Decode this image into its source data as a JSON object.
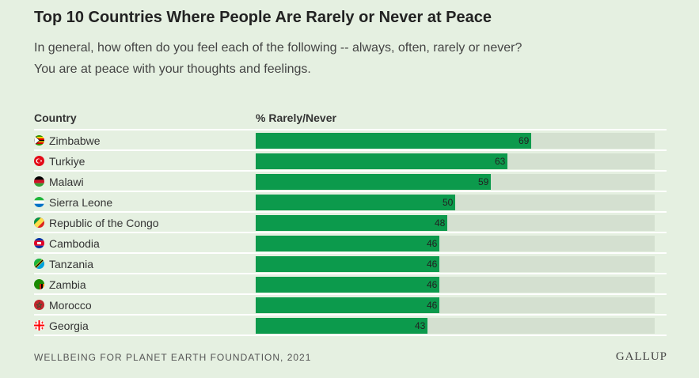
{
  "header": {
    "title": "Top 10 Countries Where People Are Rarely or Never at Peace",
    "subtitle": "In general, how often do you feel each of the following -- always, often, rarely or never?",
    "subtitle2": "You are at peace with your thoughts and feelings."
  },
  "table": {
    "country_header": "Country",
    "value_header": "% Rarely/Never"
  },
  "footer": {
    "source": "WELLBEING FOR PLANET EARTH FOUNDATION, 2021",
    "logo": "GALLUP"
  },
  "colors": {
    "bar": "#0c9a4c",
    "track": "#d4e0d0",
    "background": "#e5f0e1"
  },
  "chart_data": {
    "type": "bar",
    "orientation": "horizontal",
    "title": "Top 10 Countries Where People Are Rarely or Never at Peace",
    "xlabel": "% Rarely/Never",
    "xlim": [
      0,
      100
    ],
    "categories": [
      "Zimbabwe",
      "Turkiye",
      "Malawi",
      "Sierra Leone",
      "Republic of the Congo",
      "Cambodia",
      "Tanzania",
      "Zambia",
      "Morocco",
      "Georgia"
    ],
    "values": [
      69,
      63,
      59,
      50,
      48,
      46,
      46,
      46,
      46,
      43
    ],
    "flag_icons": [
      "zimbabwe-flag-icon",
      "turkiye-flag-icon",
      "malawi-flag-icon",
      "sierra-leone-flag-icon",
      "republic-of-the-congo-flag-icon",
      "cambodia-flag-icon",
      "tanzania-flag-icon",
      "zambia-flag-icon",
      "morocco-flag-icon",
      "georgia-flag-icon"
    ]
  }
}
